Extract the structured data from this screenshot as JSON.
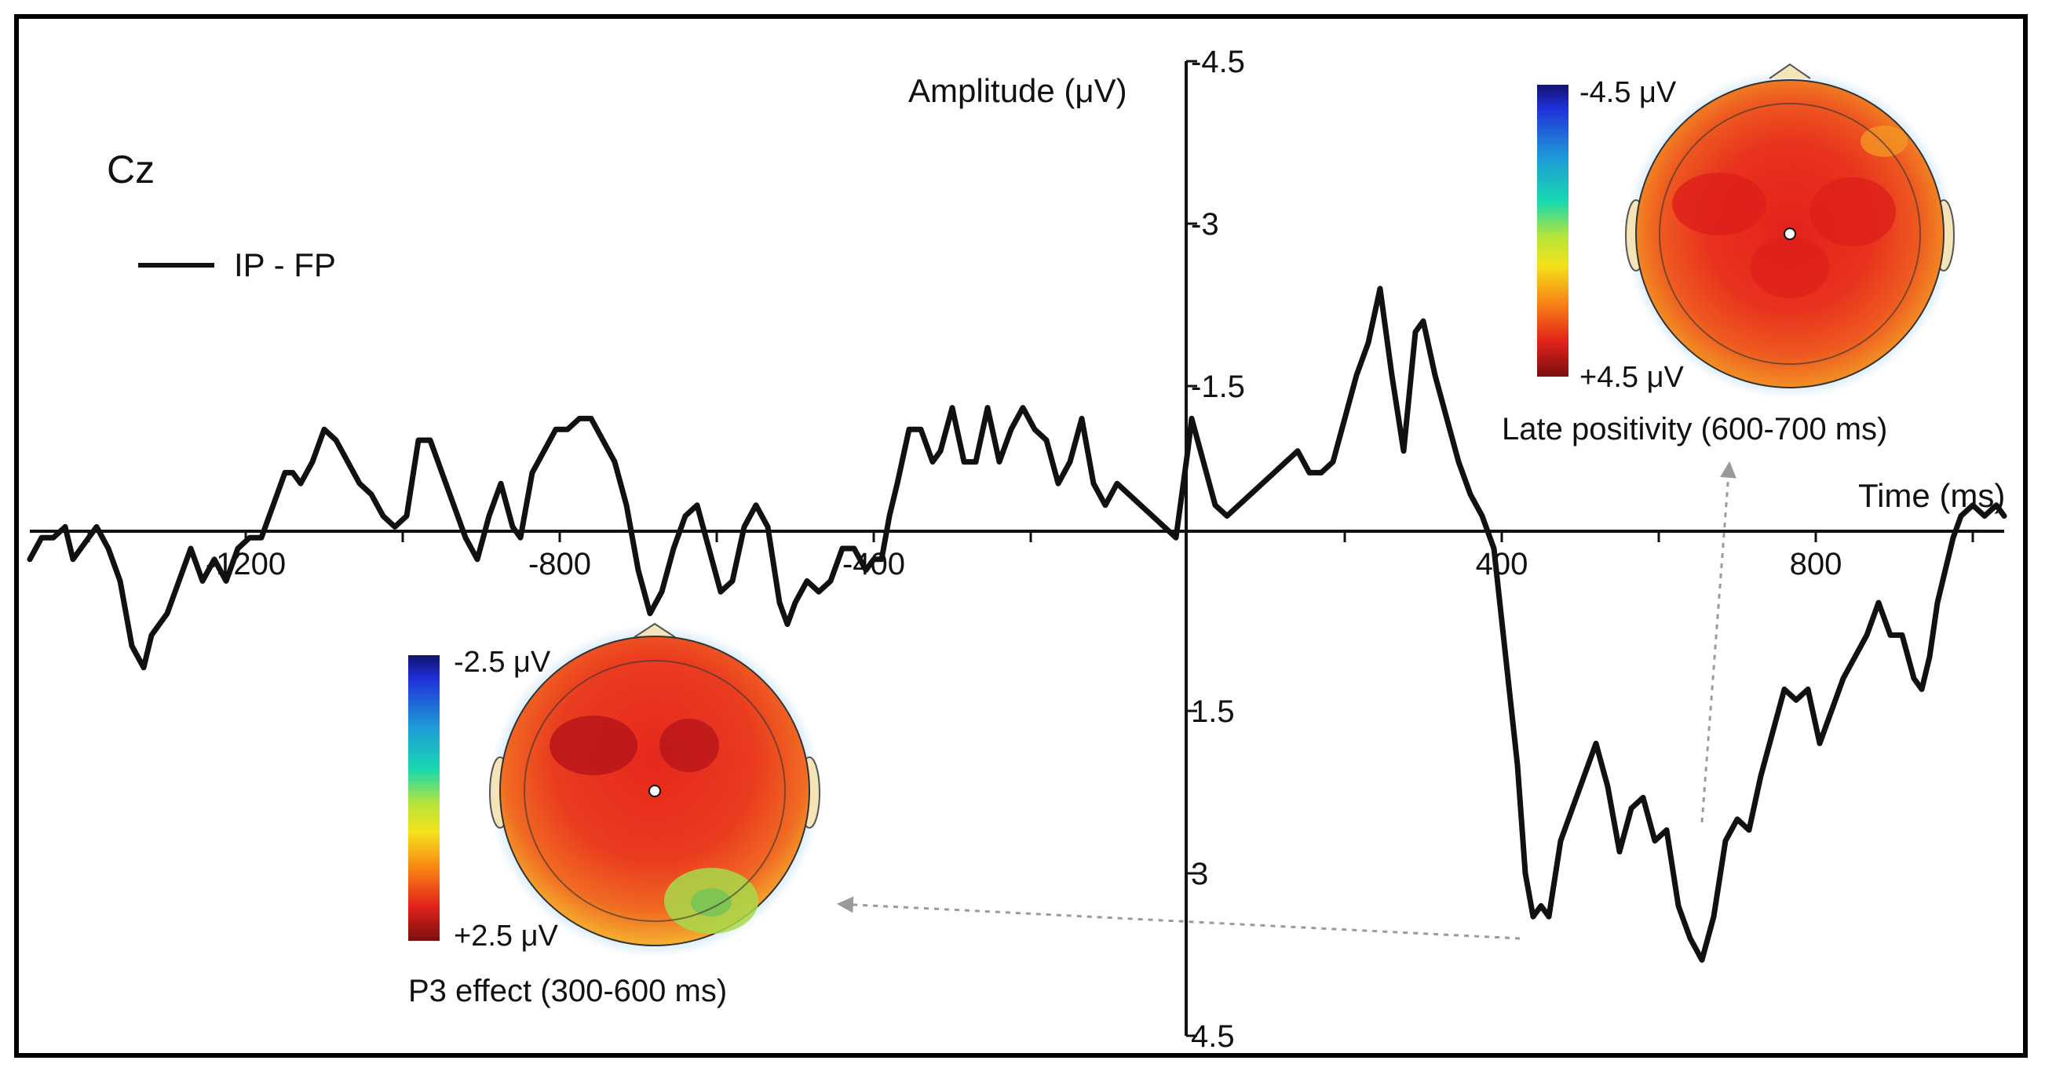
{
  "chart_data": {
    "type": "line",
    "channel_label": "Cz",
    "legend": {
      "entries": [
        "IP - FP"
      ],
      "placement": "top-left"
    },
    "x_axis": {
      "label": "Time (ms)",
      "range": [
        -1475,
        1040
      ],
      "ticks": [
        -1200,
        -800,
        -400,
        400,
        800
      ],
      "tick_labels": [
        "-1200",
        "-800",
        "-400",
        "400",
        "800"
      ],
      "minor_ticks": [
        -1400,
        -1200,
        -1000,
        -800,
        -600,
        -400,
        -200,
        200,
        400,
        600,
        800,
        1000
      ]
    },
    "y_axis": {
      "label": "Amplitude (μV)",
      "inverted": true,
      "range": [
        -4.5,
        4.5
      ],
      "ticks": [
        -4.5,
        -3,
        -1.5,
        1.5,
        3,
        4.5
      ],
      "tick_labels": [
        "-4.5",
        "-3",
        "-1.5",
        "1.5",
        "3",
        "4.5"
      ]
    },
    "series": [
      {
        "name": "IP - FP",
        "points": [
          [
            -1475,
            0.1
          ],
          [
            -1460,
            -0.1
          ],
          [
            -1445,
            -0.1
          ],
          [
            -1430,
            -0.2
          ],
          [
            -1420,
            0.1
          ],
          [
            -1410,
            0.0
          ],
          [
            -1400,
            -0.1
          ],
          [
            -1390,
            -0.2
          ],
          [
            -1375,
            0.0
          ],
          [
            -1360,
            0.3
          ],
          [
            -1345,
            0.9
          ],
          [
            -1330,
            1.1
          ],
          [
            -1320,
            0.8
          ],
          [
            -1300,
            0.6
          ],
          [
            -1285,
            0.3
          ],
          [
            -1270,
            0.0
          ],
          [
            -1255,
            0.3
          ],
          [
            -1240,
            0.1
          ],
          [
            -1225,
            0.3
          ],
          [
            -1210,
            0.0
          ],
          [
            -1195,
            -0.1
          ],
          [
            -1180,
            -0.1
          ],
          [
            -1165,
            -0.4
          ],
          [
            -1150,
            -0.7
          ],
          [
            -1140,
            -0.7
          ],
          [
            -1130,
            -0.6
          ],
          [
            -1115,
            -0.8
          ],
          [
            -1100,
            -1.1
          ],
          [
            -1085,
            -1.0
          ],
          [
            -1070,
            -0.8
          ],
          [
            -1055,
            -0.6
          ],
          [
            -1040,
            -0.5
          ],
          [
            -1025,
            -0.3
          ],
          [
            -1010,
            -0.2
          ],
          [
            -995,
            -0.3
          ],
          [
            -980,
            -1.0
          ],
          [
            -965,
            -1.0
          ],
          [
            -950,
            -0.7
          ],
          [
            -935,
            -0.4
          ],
          [
            -920,
            -0.1
          ],
          [
            -905,
            0.1
          ],
          [
            -890,
            -0.3
          ],
          [
            -875,
            -0.6
          ],
          [
            -860,
            -0.2
          ],
          [
            -850,
            -0.1
          ],
          [
            -835,
            -0.7
          ],
          [
            -820,
            -0.9
          ],
          [
            -805,
            -1.1
          ],
          [
            -790,
            -1.1
          ],
          [
            -775,
            -1.2
          ],
          [
            -760,
            -1.2
          ],
          [
            -745,
            -1.0
          ],
          [
            -730,
            -0.8
          ],
          [
            -715,
            -0.4
          ],
          [
            -700,
            0.2
          ],
          [
            -685,
            0.6
          ],
          [
            -670,
            0.4
          ],
          [
            -655,
            0.0
          ],
          [
            -640,
            -0.3
          ],
          [
            -625,
            -0.4
          ],
          [
            -610,
            0.0
          ],
          [
            -595,
            0.4
          ],
          [
            -580,
            0.3
          ],
          [
            -565,
            -0.2
          ],
          [
            -550,
            -0.4
          ],
          [
            -535,
            -0.2
          ],
          [
            -520,
            0.5
          ],
          [
            -510,
            0.7
          ],
          [
            -500,
            0.5
          ],
          [
            -485,
            0.3
          ],
          [
            -470,
            0.4
          ],
          [
            -455,
            0.3
          ],
          [
            -440,
            0.0
          ],
          [
            -425,
            0.0
          ],
          [
            -410,
            0.2
          ],
          [
            -400,
            0.1
          ],
          [
            -390,
            0.1
          ],
          [
            -380,
            -0.3
          ],
          [
            -370,
            -0.6
          ],
          [
            -355,
            -1.1
          ],
          [
            -340,
            -1.1
          ],
          [
            -325,
            -0.8
          ],
          [
            -315,
            -0.9
          ],
          [
            -300,
            -1.3
          ],
          [
            -285,
            -0.8
          ],
          [
            -270,
            -0.8
          ],
          [
            -255,
            -1.3
          ],
          [
            -240,
            -0.8
          ],
          [
            -225,
            -1.1
          ],
          [
            -210,
            -1.3
          ],
          [
            -195,
            -1.1
          ],
          [
            -180,
            -1.0
          ],
          [
            -165,
            -0.6
          ],
          [
            -150,
            -0.8
          ],
          [
            -135,
            -1.2
          ],
          [
            -120,
            -0.6
          ],
          [
            -105,
            -0.4
          ],
          [
            -90,
            -0.6
          ],
          [
            -75,
            -0.5
          ],
          [
            -60,
            -0.4
          ],
          [
            -45,
            -0.3
          ],
          [
            -30,
            -0.2
          ],
          [
            -15,
            -0.1
          ],
          [
            0,
            -0.9
          ],
          [
            5,
            -1.2
          ],
          [
            20,
            -0.8
          ],
          [
            35,
            -0.4
          ],
          [
            50,
            -0.3
          ],
          [
            65,
            -0.4
          ],
          [
            80,
            -0.5
          ],
          [
            95,
            -0.6
          ],
          [
            110,
            -0.7
          ],
          [
            125,
            -0.8
          ],
          [
            140,
            -0.9
          ],
          [
            155,
            -0.7
          ],
          [
            170,
            -0.7
          ],
          [
            185,
            -0.8
          ],
          [
            200,
            -1.2
          ],
          [
            215,
            -1.6
          ],
          [
            230,
            -1.9
          ],
          [
            245,
            -2.4
          ],
          [
            260,
            -1.6
          ],
          [
            275,
            -0.9
          ],
          [
            290,
            -2.0
          ],
          [
            300,
            -2.1
          ],
          [
            315,
            -1.6
          ],
          [
            330,
            -1.2
          ],
          [
            345,
            -0.8
          ],
          [
            360,
            -0.5
          ],
          [
            375,
            -0.3
          ],
          [
            390,
            0.0
          ],
          [
            405,
            1.0
          ],
          [
            420,
            2.0
          ],
          [
            430,
            3.0
          ],
          [
            440,
            3.4
          ],
          [
            450,
            3.3
          ],
          [
            460,
            3.4
          ],
          [
            475,
            2.7
          ],
          [
            490,
            2.4
          ],
          [
            505,
            2.1
          ],
          [
            520,
            1.8
          ],
          [
            535,
            2.2
          ],
          [
            550,
            2.8
          ],
          [
            565,
            2.4
          ],
          [
            580,
            2.3
          ],
          [
            595,
            2.7
          ],
          [
            610,
            2.6
          ],
          [
            625,
            3.3
          ],
          [
            640,
            3.6
          ],
          [
            655,
            3.8
          ],
          [
            670,
            3.4
          ],
          [
            685,
            2.7
          ],
          [
            700,
            2.5
          ],
          [
            715,
            2.6
          ],
          [
            730,
            2.1
          ],
          [
            745,
            1.7
          ],
          [
            760,
            1.3
          ],
          [
            775,
            1.4
          ],
          [
            790,
            1.3
          ],
          [
            805,
            1.8
          ],
          [
            820,
            1.5
          ],
          [
            835,
            1.2
          ],
          [
            850,
            1.0
          ],
          [
            865,
            0.8
          ],
          [
            880,
            0.5
          ],
          [
            895,
            0.8
          ],
          [
            910,
            0.8
          ],
          [
            925,
            1.2
          ],
          [
            935,
            1.3
          ],
          [
            945,
            1.0
          ],
          [
            955,
            0.5
          ],
          [
            965,
            0.2
          ],
          [
            975,
            -0.1
          ],
          [
            985,
            -0.3
          ],
          [
            1000,
            -0.4
          ],
          [
            1015,
            -0.3
          ],
          [
            1030,
            -0.4
          ],
          [
            1040,
            -0.3
          ]
        ]
      }
    ],
    "topomaps": [
      {
        "title": "P3 effect (300-600 ms)",
        "scale_min_label": "-2.5 μV",
        "scale_max_label": "+2.5 μV"
      },
      {
        "title": "Late positivity (600-700 ms)",
        "scale_min_label": "-4.5 μV",
        "scale_max_label": "+4.5 μV"
      }
    ],
    "grid": false,
    "colors": {
      "line": "#111111",
      "arrow": "#9a9a9a",
      "frame": "#000000"
    }
  }
}
